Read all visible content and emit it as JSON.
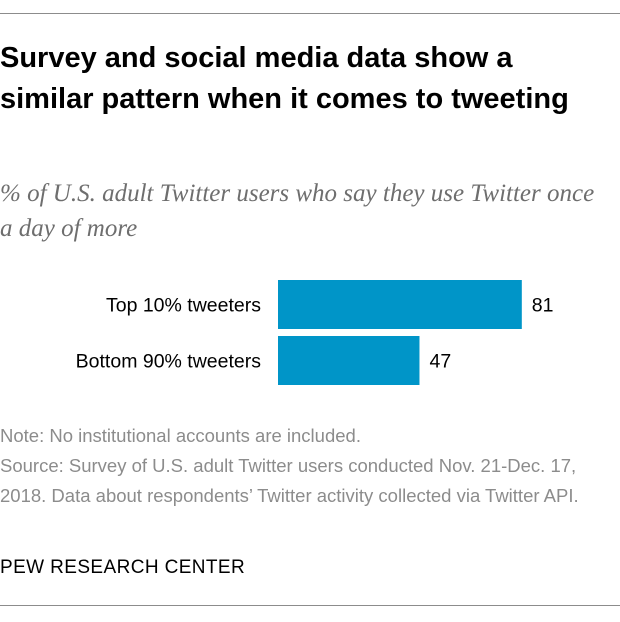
{
  "header": {
    "title": "Survey and social media data show a similar pattern when it comes to tweeting",
    "subtitle": "% of U.S. adult Twitter users who say they use Twitter once a day of more"
  },
  "chart_data": {
    "type": "bar",
    "orientation": "horizontal",
    "categories": [
      "Top 10% tweeters",
      "Bottom 90% tweeters"
    ],
    "values": [
      81,
      47
    ],
    "data_labels": [
      "81",
      "47"
    ],
    "bar_color": "#0095c8",
    "xlim": [
      0,
      100
    ],
    "grid": false,
    "legend": "none"
  },
  "footer": {
    "note": "Note: No institutional accounts are included.",
    "source": "Source: Survey of U.S. adult Twitter users conducted Nov. 21-Dec. 17, 2018. Data about respondents’ Twitter activity collected via Twitter API.",
    "organization": "PEW RESEARCH CENTER"
  }
}
